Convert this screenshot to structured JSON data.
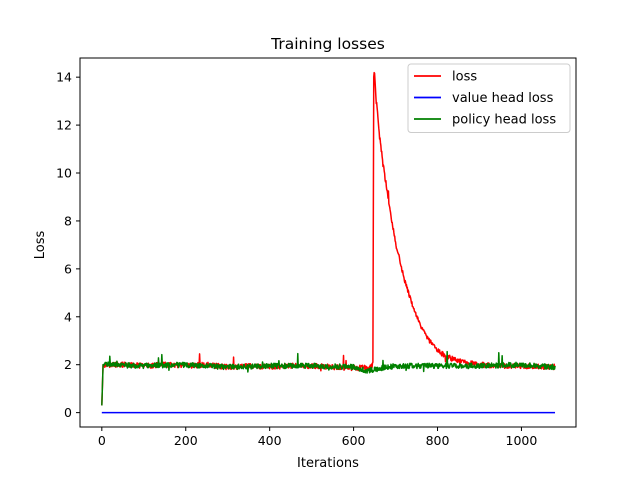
{
  "chart_data": {
    "type": "line",
    "title": "Training losses",
    "xlabel": "Iterations",
    "ylabel": "Loss",
    "xlim": [
      -52,
      1130
    ],
    "ylim": [
      -0.6,
      14.8
    ],
    "xticks": [
      0,
      200,
      400,
      600,
      800,
      1000
    ],
    "yticks": [
      0,
      2,
      4,
      6,
      8,
      10,
      12,
      14
    ],
    "grid": false,
    "legend": "top-right",
    "series": [
      {
        "name": "loss",
        "color": "#ff0000",
        "x": [
          0,
          3,
          10,
          50,
          100,
          150,
          200,
          250,
          300,
          350,
          400,
          450,
          500,
          550,
          600,
          640,
          646,
          648,
          650,
          652,
          655,
          660,
          670,
          680,
          690,
          700,
          720,
          740,
          760,
          780,
          800,
          820,
          850,
          900,
          950,
          1000,
          1050,
          1080
        ],
        "y": [
          0.3,
          2.0,
          2.0,
          2.0,
          1.95,
          2.0,
          1.95,
          2.0,
          1.9,
          1.95,
          1.9,
          1.95,
          1.95,
          1.9,
          1.85,
          1.9,
          2.0,
          14.1,
          14.0,
          13.5,
          12.8,
          11.8,
          10.4,
          9.2,
          8.1,
          7.1,
          5.6,
          4.5,
          3.6,
          3.0,
          2.6,
          2.35,
          2.15,
          2.0,
          1.95,
          1.95,
          1.9,
          1.9
        ]
      },
      {
        "name": "value head loss",
        "color": "#0000ff",
        "x": [
          0,
          1080
        ],
        "y": [
          0.0,
          0.0
        ]
      },
      {
        "name": "policy head loss",
        "color": "#008000",
        "x": [
          0,
          3,
          10,
          100,
          200,
          300,
          400,
          500,
          600,
          630,
          700,
          800,
          900,
          1000,
          1080
        ],
        "y": [
          0.3,
          2.0,
          2.0,
          1.95,
          2.0,
          1.9,
          1.95,
          1.95,
          1.9,
          1.75,
          1.95,
          1.95,
          1.95,
          2.0,
          1.9
        ]
      }
    ]
  }
}
